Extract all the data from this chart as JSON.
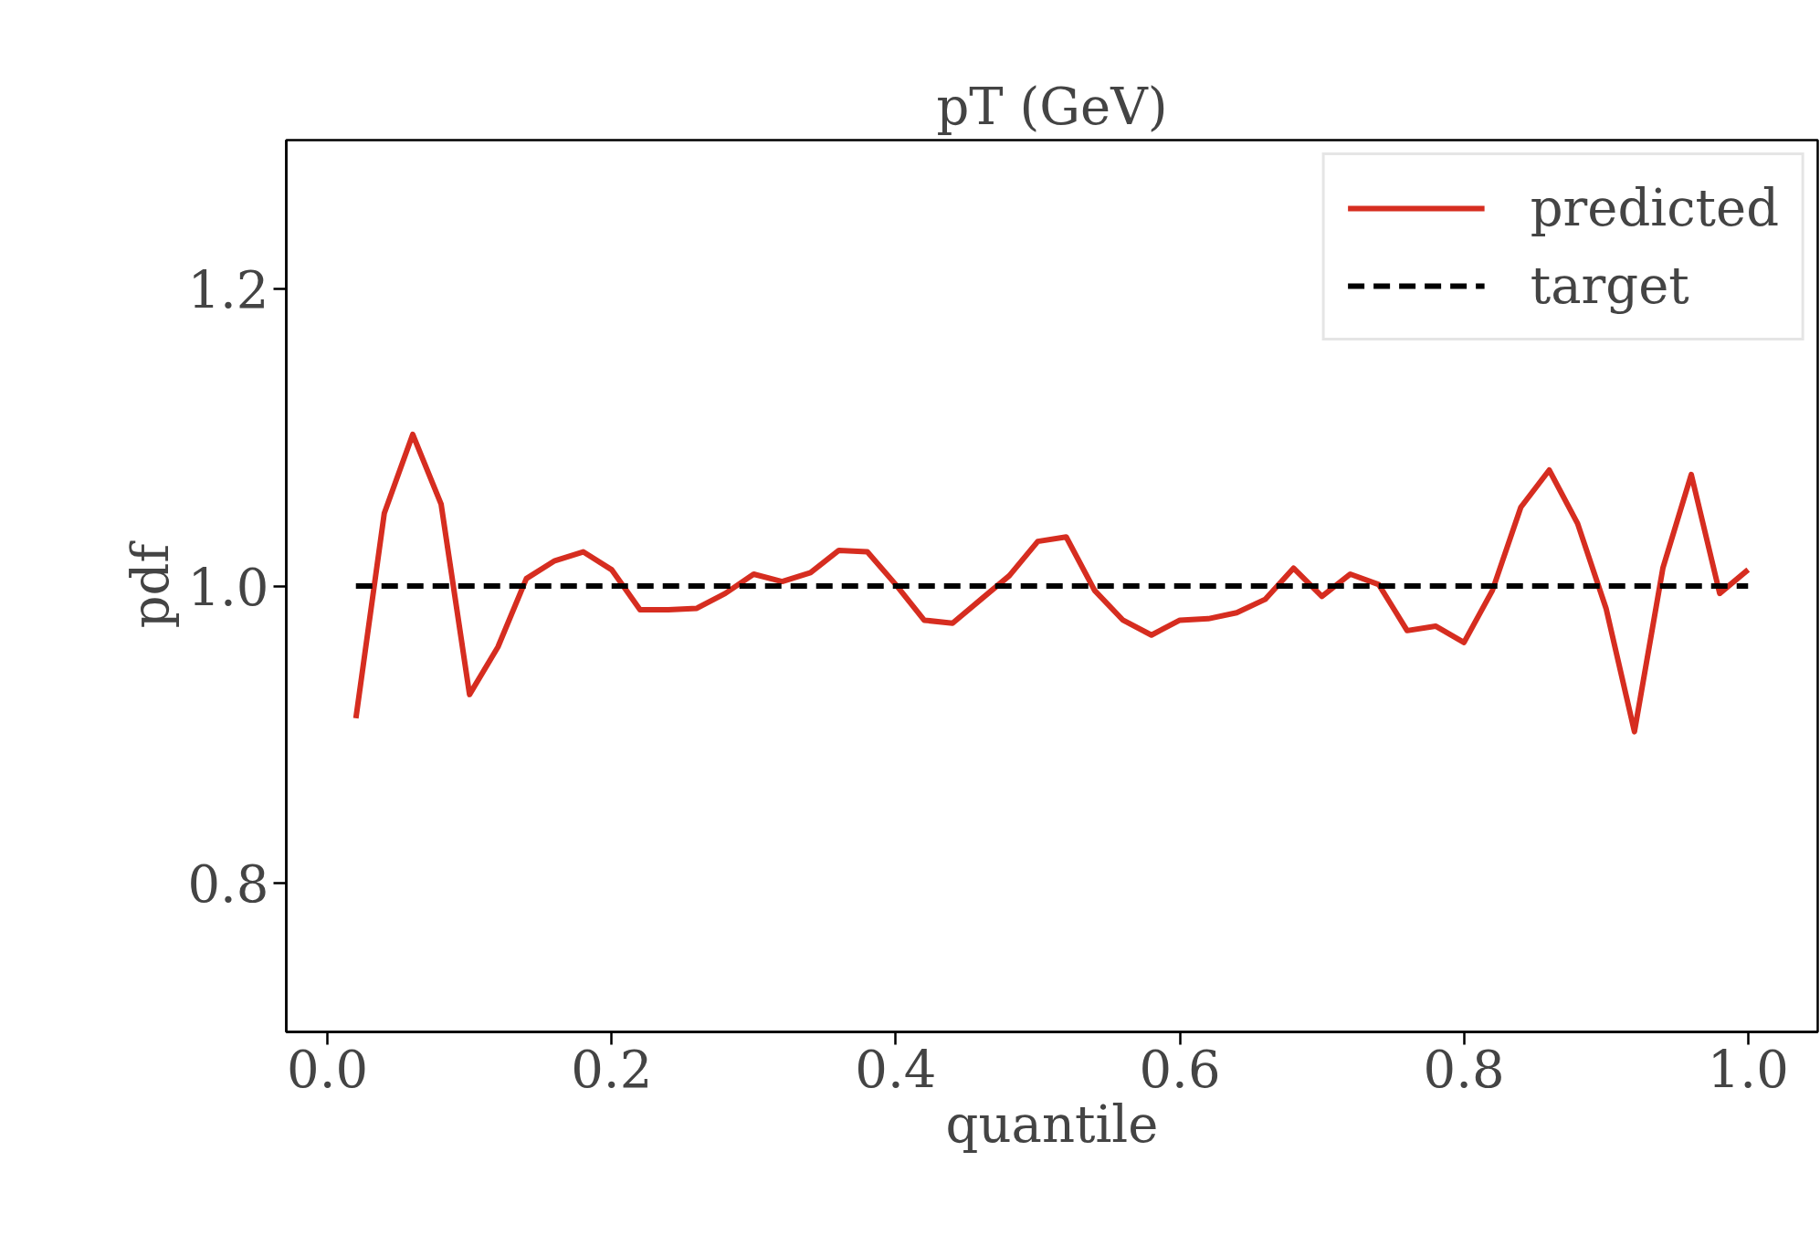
{
  "chart_data": {
    "type": "line",
    "title": "pT (GeV)",
    "xlabel": "quantile",
    "ylabel": "pdf",
    "xlim": [
      -0.029,
      1.049
    ],
    "ylim": [
      0.7,
      1.3
    ],
    "xticks": [
      {
        "value": 0.0,
        "label": "0.0"
      },
      0.2,
      0.4,
      0.6,
      0.8,
      {
        "value": 1.0,
        "label": "1.0"
      }
    ],
    "yticks": [
      0.8,
      {
        "value": 1.0,
        "label": "1.0"
      },
      1.2
    ],
    "grid": false,
    "legend": "top right",
    "series": [
      {
        "name": "predicted",
        "color": "#d62d20",
        "line_style": "solid",
        "x": [
          0.02,
          0.04,
          0.06,
          0.08,
          0.1,
          0.12,
          0.14,
          0.16,
          0.18,
          0.2,
          0.22,
          0.24,
          0.26,
          0.28,
          0.3,
          0.32,
          0.34,
          0.36,
          0.38,
          0.4,
          0.42,
          0.44,
          0.46,
          0.48,
          0.5,
          0.52,
          0.54,
          0.56,
          0.58,
          0.6,
          0.62,
          0.64,
          0.66,
          0.68,
          0.7,
          0.72,
          0.74,
          0.76,
          0.78,
          0.8,
          0.82,
          0.84,
          0.86,
          0.88,
          0.9,
          0.92,
          0.94,
          0.96,
          0.98,
          1.0
        ],
        "values": [
          0.911,
          1.049,
          1.102,
          1.055,
          0.927,
          0.959,
          1.005,
          1.017,
          1.023,
          1.011,
          0.984,
          0.984,
          0.985,
          0.995,
          1.008,
          1.003,
          1.009,
          1.024,
          1.023,
          1.001,
          0.977,
          0.975,
          0.991,
          1.007,
          1.03,
          1.033,
          0.997,
          0.977,
          0.967,
          0.977,
          0.978,
          0.982,
          0.991,
          1.012,
          0.993,
          1.008,
          1.001,
          0.97,
          0.973,
          0.962,
          0.997,
          1.053,
          1.078,
          1.042,
          0.985,
          0.902,
          1.012,
          1.075,
          0.995,
          1.011
        ]
      },
      {
        "name": "target",
        "color": "#000000",
        "line_style": "dashed",
        "x": [
          0.02,
          1.0
        ],
        "values": [
          1.0,
          1.0
        ]
      }
    ]
  }
}
